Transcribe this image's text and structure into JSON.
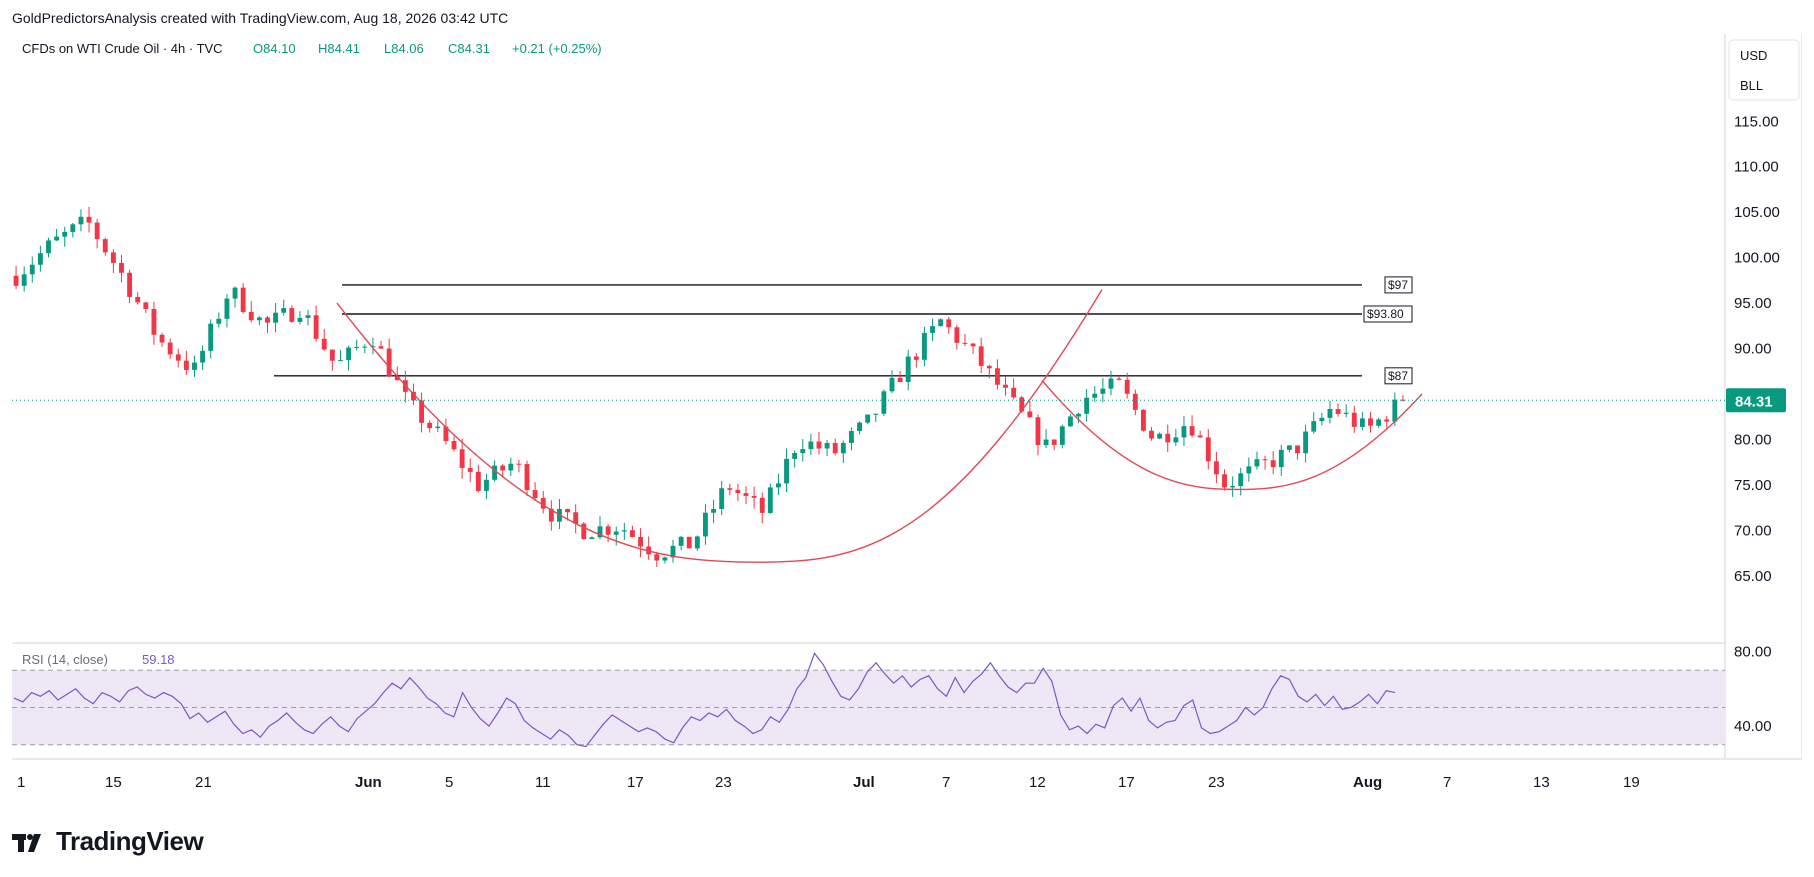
{
  "caption": "GoldPredictorsAnalysis created with TradingView.com, Aug 18, 2026 03:42 UTC",
  "header": {
    "symbol": "CFDs on WTI Crude Oil · 4h · TVC",
    "open": "O84.10",
    "high": "H84.41",
    "low": "L84.06",
    "close": "C84.31",
    "change": "+0.21 (+0.25%)"
  },
  "scale_labels": {
    "currency": "USD",
    "unit": "BLL"
  },
  "brand": "TradingView",
  "colors": {
    "up": "#089981",
    "down": "#f23645",
    "pattern": "#e04a55",
    "rsi": "#7e57c2",
    "rsi_band": "#ede7f6",
    "current_price_bg": "#089981",
    "text": "#131722",
    "muted": "#6a6d78"
  },
  "chart_data": [
    {
      "type": "candlestick",
      "timeframe": "4h",
      "x_tick_labels": [
        "1",
        "15",
        "21",
        "Jun",
        "5",
        "11",
        "17",
        "23",
        "Jul",
        "7",
        "12",
        "17",
        "23",
        "Aug",
        "7",
        "13",
        "19"
      ],
      "y_tick_labels": [
        "115.00",
        "110.00",
        "105.00",
        "100.00",
        "95.00",
        "90.00",
        "85.00",
        "80.00",
        "75.00",
        "70.00",
        "65.00"
      ],
      "ylim": [
        63,
        118
      ],
      "current_price": 84.31,
      "current_price_label": "84.31",
      "approx_price_path": [
        {
          "x": "1",
          "price": 98
        },
        {
          "x": "15",
          "price": 101.5
        },
        {
          "x": "18",
          "price": 104
        },
        {
          "x": "21",
          "price": 98
        },
        {
          "x": "25",
          "price": 91
        },
        {
          "x": "30",
          "price": 87.5
        },
        {
          "x": "Jun 3",
          "price": 96.5
        },
        {
          "x": "5",
          "price": 92.5
        },
        {
          "x": "7",
          "price": 94.5
        },
        {
          "x": "9",
          "price": 88
        },
        {
          "x": "11",
          "price": 91.5
        },
        {
          "x": "13",
          "price": 84
        },
        {
          "x": "15",
          "price": 80
        },
        {
          "x": "17",
          "price": 75
        },
        {
          "x": "20",
          "price": 77.5
        },
        {
          "x": "23",
          "price": 72
        },
        {
          "x": "26",
          "price": 70
        },
        {
          "x": "29",
          "price": 70.5
        },
        {
          "x": "Jul 2",
          "price": 67.5
        },
        {
          "x": "5",
          "price": 68.5
        },
        {
          "x": "8",
          "price": 75
        },
        {
          "x": "11",
          "price": 72
        },
        {
          "x": "13",
          "price": 80
        },
        {
          "x": "17",
          "price": 78.5
        },
        {
          "x": "19",
          "price": 82
        },
        {
          "x": "21",
          "price": 88
        },
        {
          "x": "23",
          "price": 93
        },
        {
          "x": "25",
          "price": 89
        },
        {
          "x": "26",
          "price": 84
        },
        {
          "x": "28",
          "price": 79
        },
        {
          "x": "30",
          "price": 84.5
        },
        {
          "x": "Aug 1",
          "price": 86
        },
        {
          "x": "2",
          "price": 80
        },
        {
          "x": "4",
          "price": 82
        },
        {
          "x": "5",
          "price": 75
        },
        {
          "x": "7",
          "price": 77
        },
        {
          "x": "9",
          "price": 79
        },
        {
          "x": "10",
          "price": 83.5
        },
        {
          "x": "13",
          "price": 81
        },
        {
          "x": "16",
          "price": 84.31
        }
      ],
      "horizontal_levels": [
        {
          "price": 97,
          "label": "$97"
        },
        {
          "price": 93.8,
          "label": "$93.80"
        },
        {
          "price": 87,
          "label": "$87"
        }
      ],
      "patterns": [
        {
          "name": "large rounded bottom",
          "start_price": 95,
          "bottom_price": 66.5,
          "end_price": 96.5
        },
        {
          "name": "small rounded bottom",
          "start_price": 86.5,
          "bottom_price": 74.5,
          "end_price": 85
        }
      ]
    },
    {
      "type": "line",
      "title": "RSI (14, close)",
      "last_value": "59.18",
      "y_tick_labels": [
        "80.00",
        "40.00"
      ],
      "ylim": [
        25,
        83
      ],
      "bands": [
        70,
        50,
        30
      ],
      "values": [
        55,
        53,
        58,
        56,
        59,
        54,
        57,
        60,
        55,
        52,
        58,
        56,
        53,
        59,
        61,
        57,
        55,
        58,
        56,
        52,
        44,
        47,
        42,
        45,
        48,
        41,
        36,
        38,
        34,
        40,
        43,
        47,
        42,
        38,
        36,
        41,
        45,
        40,
        37,
        44,
        48,
        52,
        58,
        63,
        60,
        66,
        61,
        55,
        52,
        47,
        45,
        58,
        50,
        44,
        40,
        47,
        55,
        52,
        43,
        39,
        36,
        33,
        38,
        35,
        30,
        29,
        35,
        41,
        46,
        43,
        40,
        37,
        39,
        37,
        33,
        31,
        39,
        45,
        43,
        47,
        45,
        49,
        43,
        40,
        36,
        38,
        45,
        42,
        49,
        60,
        66,
        79,
        73,
        64,
        56,
        54,
        60,
        69,
        74,
        68,
        63,
        67,
        61,
        65,
        67,
        60,
        56,
        66,
        58,
        64,
        68,
        74,
        67,
        61,
        58,
        63,
        63,
        71,
        64,
        46,
        38,
        40,
        36,
        41,
        39,
        51,
        55,
        48,
        55,
        43,
        39,
        42,
        43,
        51,
        54,
        39,
        36,
        37,
        40,
        43,
        50,
        46,
        50,
        60,
        67,
        65,
        56,
        53,
        57,
        51,
        56,
        49,
        50,
        53,
        57,
        52,
        59,
        58
      ]
    }
  ]
}
